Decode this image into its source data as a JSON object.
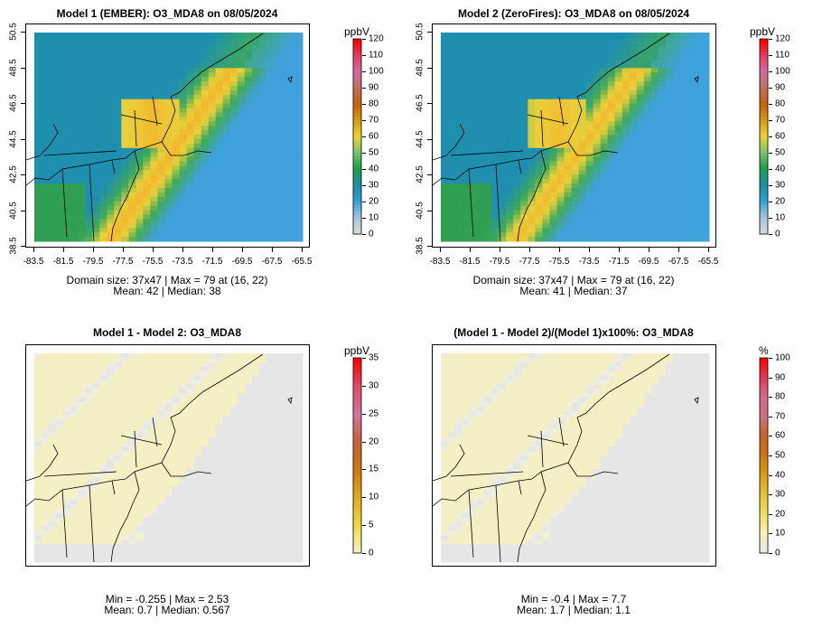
{
  "panels": [
    {
      "id": "m1",
      "title": "Model 1 (EMBER): O3_MDA8 on 08/05/2024",
      "field": "m1",
      "show_axes": true,
      "caption_line1": "Domain size: 37x47 | Max = 79 at (16, 22)",
      "caption_line2": "Mean: 42 |  Median: 38",
      "colorbar": {
        "unit": "ppbV",
        "ticks": [
          "120",
          "110",
          "100",
          "90",
          "80",
          "70",
          "60",
          "50",
          "40",
          "30",
          "20",
          "10",
          "0"
        ],
        "palette": [
          "#ff0000",
          "#e83e66",
          "#d36aa3",
          "#c0705a",
          "#c8600c",
          "#d89a10",
          "#efd330",
          "#78c46a",
          "#18a04c",
          "#1d8fa0",
          "#2aa0d8",
          "#9cc4da",
          "#d8d8d8"
        ]
      }
    },
    {
      "id": "m2",
      "title": "Model 2 (ZeroFires): O3_MDA8 on 08/05/2024",
      "field": "m2",
      "show_axes": true,
      "caption_line1": "Domain size: 37x47 | Max = 79 at (16, 22)",
      "caption_line2": "Mean: 41 |  Median: 37",
      "colorbar": {
        "unit": "ppbV",
        "ticks": [
          "120",
          "110",
          "100",
          "90",
          "80",
          "70",
          "60",
          "50",
          "40",
          "30",
          "20",
          "10",
          "0"
        ],
        "palette": [
          "#ff0000",
          "#e83e66",
          "#d36aa3",
          "#c0705a",
          "#c8600c",
          "#d89a10",
          "#efd330",
          "#78c46a",
          "#18a04c",
          "#1d8fa0",
          "#2aa0d8",
          "#9cc4da",
          "#d8d8d8"
        ]
      }
    },
    {
      "id": "diff",
      "title": "Model 1 - Model 2: O3_MDA8",
      "field": "diff",
      "show_axes": false,
      "caption_line1": "Min = -0.255 | Max = 2.53",
      "caption_line2": "Mean: 0.7 |  Median: 0.567",
      "colorbar": {
        "unit": "ppbV",
        "ticks": [
          "35",
          "30",
          "25",
          "20",
          "15",
          "10",
          "5",
          "0"
        ],
        "palette": [
          "#ff0000",
          "#e04a6a",
          "#d276a0",
          "#c8603a",
          "#d07810",
          "#e0a818",
          "#f0d83c",
          "#f8f0c0"
        ]
      }
    },
    {
      "id": "pct",
      "title": "(Model 1 - Model 2)/(Model 1)x100%: O3_MDA8",
      "field": "pct",
      "show_axes": false,
      "caption_line1": "Min = -0.4 | Max = 7.7",
      "caption_line2": "Mean: 1.7 |  Median: 1.1",
      "colorbar": {
        "unit": "%",
        "ticks": [
          "100",
          "90",
          "80",
          "70",
          "60",
          "50",
          "40",
          "30",
          "20",
          "10",
          "0"
        ],
        "palette": [
          "#ff0000",
          "#e8385a",
          "#d86890",
          "#d07080",
          "#c86028",
          "#d07810",
          "#dc9c14",
          "#e8c030",
          "#f0dc5c",
          "#f8f0b0",
          "#e8e8e8"
        ]
      }
    }
  ],
  "x_ticks": [
    "-83.5",
    "-81.5",
    "-79.5",
    "-77.5",
    "-75.5",
    "-73.5",
    "-71.5",
    "-69.5",
    "-67.5",
    "-65.5"
  ],
  "y_ticks": [
    "38.5",
    "40.5",
    "42.5",
    "44.5",
    "46.5",
    "48.5",
    "50.5"
  ],
  "grid": {
    "cols": 37,
    "rows": 47
  },
  "colors": {
    "ocean_blue": "#3fa2dc",
    "land_teal": "#1f8faf",
    "diff_background": "#e6e6e6",
    "diff_yellow": "#f4f0c4",
    "boundary": "#000000"
  }
}
